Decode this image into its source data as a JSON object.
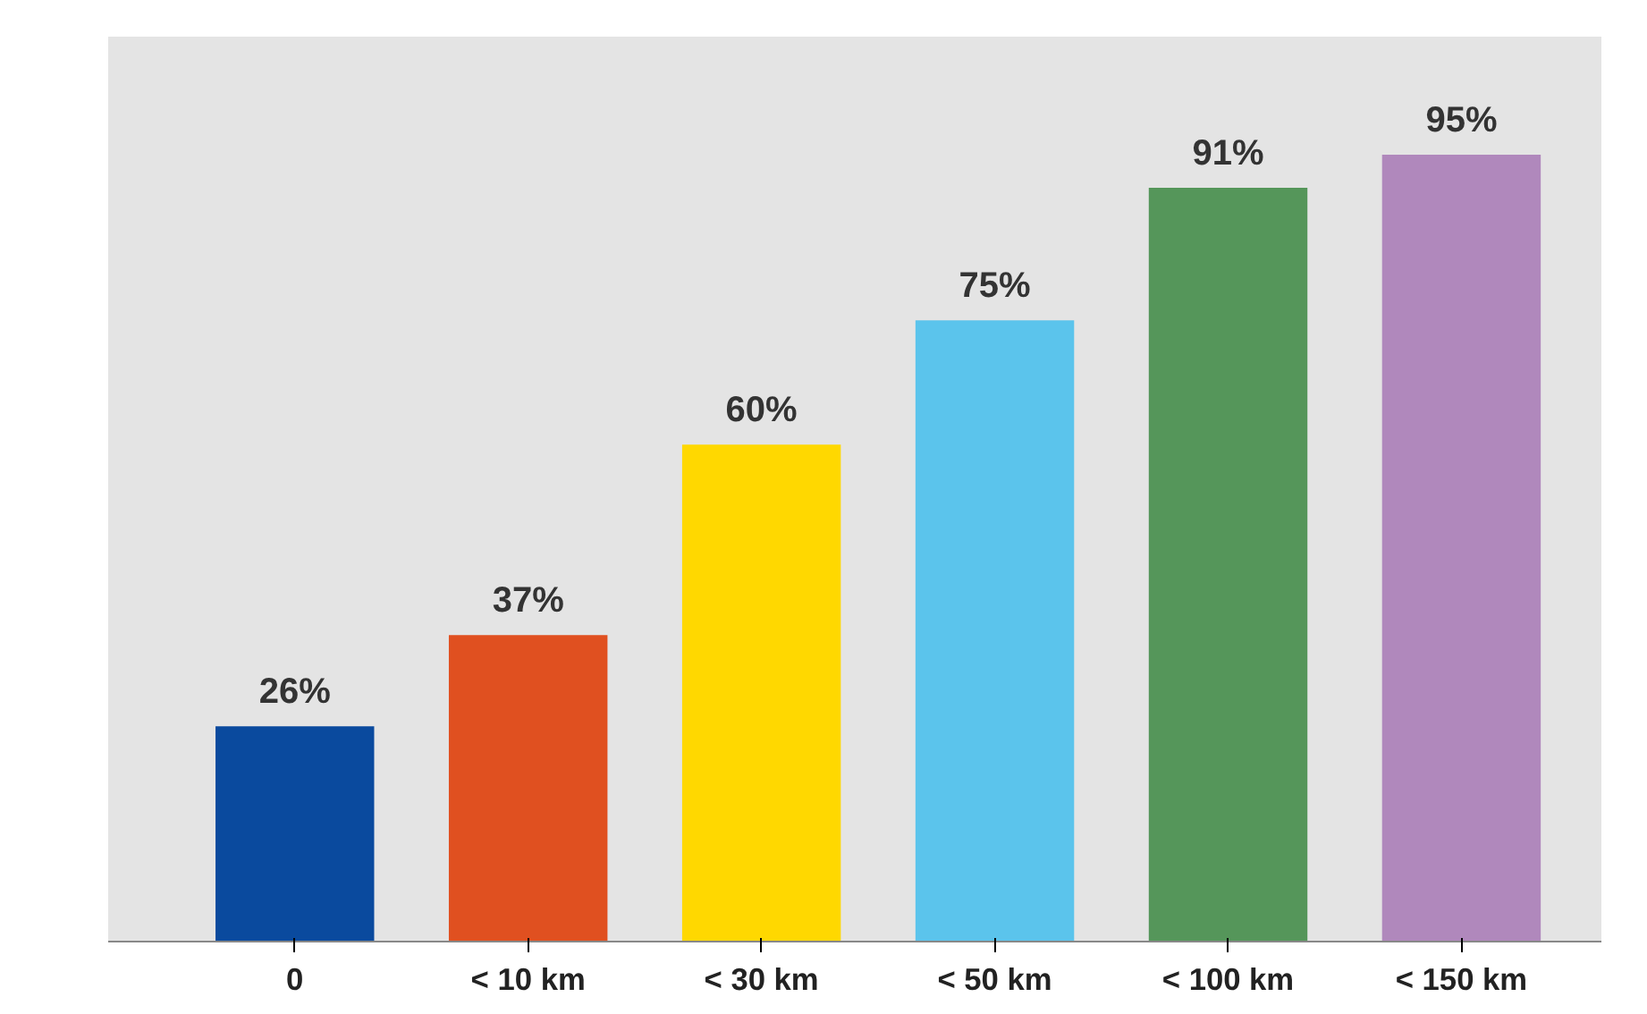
{
  "chart_data": {
    "type": "bar",
    "categories": [
      "0",
      "< 10 km",
      "< 30 km",
      "< 50 km",
      "< 100 km",
      "< 150 km"
    ],
    "values": [
      26,
      37,
      60,
      75,
      91,
      95
    ],
    "colors": [
      "#0a4a9e",
      "#e05020",
      "#ffd800",
      "#5bc4ec",
      "#55965a",
      "#b088bc"
    ],
    "value_labels": [
      "26%",
      "37%",
      "60%",
      "75%",
      "91%",
      "95%"
    ]
  }
}
